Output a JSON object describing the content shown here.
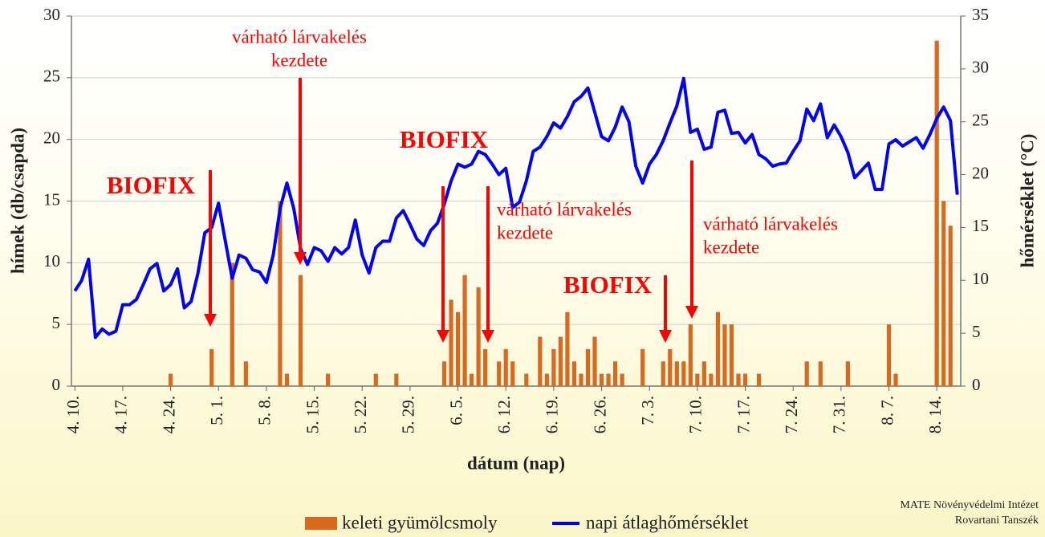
{
  "chart_data": {
    "type": "bar",
    "categories": [
      "4. 10.",
      null,
      null,
      null,
      null,
      null,
      null,
      "4. 17.",
      null,
      null,
      null,
      null,
      null,
      null,
      "4. 24.",
      null,
      null,
      null,
      null,
      null,
      null,
      "5. 1.",
      null,
      null,
      null,
      null,
      null,
      null,
      "5. 8.",
      null,
      null,
      null,
      null,
      null,
      null,
      "5. 15.",
      null,
      null,
      null,
      null,
      null,
      null,
      "5. 22.",
      null,
      null,
      null,
      null,
      null,
      null,
      "5. 29.",
      null,
      null,
      null,
      null,
      null,
      null,
      "6. 5.",
      null,
      null,
      null,
      null,
      null,
      null,
      "6. 12.",
      null,
      null,
      null,
      null,
      null,
      null,
      "6. 19.",
      null,
      null,
      null,
      null,
      null,
      null,
      "6. 26.",
      null,
      null,
      null,
      null,
      null,
      null,
      "7. 3.",
      null,
      null,
      null,
      null,
      null,
      null,
      "7. 10.",
      null,
      null,
      null,
      null,
      null,
      null,
      "7. 17.",
      null,
      null,
      null,
      null,
      null,
      null,
      "7. 24.",
      null,
      null,
      null,
      null,
      null,
      null,
      "7. 31.",
      null,
      null,
      null,
      null,
      null,
      null,
      "8. 7.",
      null,
      null,
      null,
      null,
      null,
      null,
      "8. 14.",
      null,
      null,
      null
    ],
    "series": [
      {
        "name": "keleti gyümölcsmoly",
        "type": "bar",
        "color": "#d9691e",
        "values": [
          0,
          0,
          0,
          0,
          0,
          0,
          0,
          0,
          0,
          0,
          0,
          0,
          0,
          0,
          1,
          0,
          0,
          0,
          0,
          0,
          3,
          0,
          0,
          10,
          0,
          2,
          0,
          0,
          0,
          0,
          15,
          1,
          0,
          9,
          0,
          0,
          0,
          1,
          0,
          0,
          0,
          0,
          0,
          0,
          1,
          0,
          0,
          1,
          0,
          0,
          0,
          0,
          0,
          0,
          2,
          7,
          6,
          9,
          1,
          8,
          3,
          0,
          2,
          3,
          2,
          0,
          1,
          0,
          4,
          1,
          3,
          4,
          6,
          2,
          1,
          3,
          4,
          1,
          1,
          2,
          1,
          0,
          0,
          3,
          0,
          0,
          2,
          3,
          2,
          2,
          5,
          1,
          2,
          1,
          6,
          5,
          5,
          1,
          1,
          0,
          1,
          0,
          0,
          0,
          0,
          0,
          0,
          2,
          0,
          2,
          0,
          0,
          0,
          2,
          0,
          0,
          0,
          0,
          0,
          5,
          1,
          0,
          0,
          0,
          0,
          0,
          28,
          15,
          13,
          0
        ]
      },
      {
        "name": "napi átlaghőmérséklet",
        "type": "line",
        "color": "#0000ff",
        "axis": "y2",
        "values": [
          9.0,
          10,
          12,
          4.6,
          5.4,
          4.9,
          5.2,
          7.7,
          7.7,
          8.2,
          9.6,
          11.1,
          11.6,
          9.0,
          9.6,
          11.1,
          7.4,
          8.0,
          10.7,
          14.5,
          15.0,
          17.3,
          13.7,
          10.2,
          12.4,
          12.1,
          11.0,
          10.8,
          9.8,
          12.4,
          16.8,
          19.2,
          16.8,
          13.0,
          11.5,
          13.1,
          12.8,
          11.8,
          13.1,
          12.5,
          13.1,
          15.7,
          12.4,
          10.7,
          13.1,
          13.7,
          13.7,
          15.9,
          16.6,
          15.3,
          13.9,
          13.3,
          14.7,
          15.4,
          17.2,
          19.4,
          21.0,
          20.7,
          21.0,
          22.2,
          21.9,
          21.0,
          20.0,
          20.6,
          16.9,
          17.4,
          19.4,
          22.2,
          22.6,
          23.6,
          24.9,
          24.4,
          25.5,
          26.9,
          27.4,
          28.2,
          25.9,
          23.6,
          23.2,
          24.5,
          26.4,
          25.0,
          20.8,
          19.2,
          21.0,
          21.9,
          23.2,
          24.9,
          26.5,
          29.1,
          24.0,
          24.3,
          22.4,
          22.6,
          25.9,
          26.1,
          23.9,
          24.0,
          23.0,
          23.8,
          21.9,
          21.5,
          20.8,
          21.0,
          21.1,
          22.2,
          23.2,
          26.2,
          25.1,
          26.7,
          23.5,
          24.7,
          23.6,
          22.1,
          19.7,
          20.4,
          21.1,
          18.6,
          18.6,
          22.9,
          23.3,
          22.7,
          23.1,
          23.5,
          22.5,
          23.8,
          25.3,
          26.4,
          25.1,
          18.1
        ]
      }
    ],
    "ylim": [
      0,
      30
    ],
    "yticks": [
      0,
      5,
      10,
      15,
      20,
      25,
      30
    ],
    "y2lim": [
      0,
      35
    ],
    "y2ticks": [
      0,
      5,
      10,
      15,
      20,
      25,
      30,
      35
    ],
    "grid": true,
    "ylabel": "hímek (db/csapda)",
    "y2label": "hőmérséklet (°C)",
    "xlabel": "dátum (nap)",
    "biofix_labels": [
      "BIOFIX",
      "BIOFIX",
      "BIOFIX"
    ],
    "larva_labels": [
      [
        "várható lárvakelés",
        "kezdete"
      ],
      [
        "várható lárvakelés",
        "kezdete"
      ],
      [
        "várható lárvakelés",
        "kezdete"
      ]
    ],
    "annotation_color": "#ff0000",
    "source": [
      "MATE Növényvédelmi Intézet",
      "Rovartani Tanszék"
    ]
  }
}
